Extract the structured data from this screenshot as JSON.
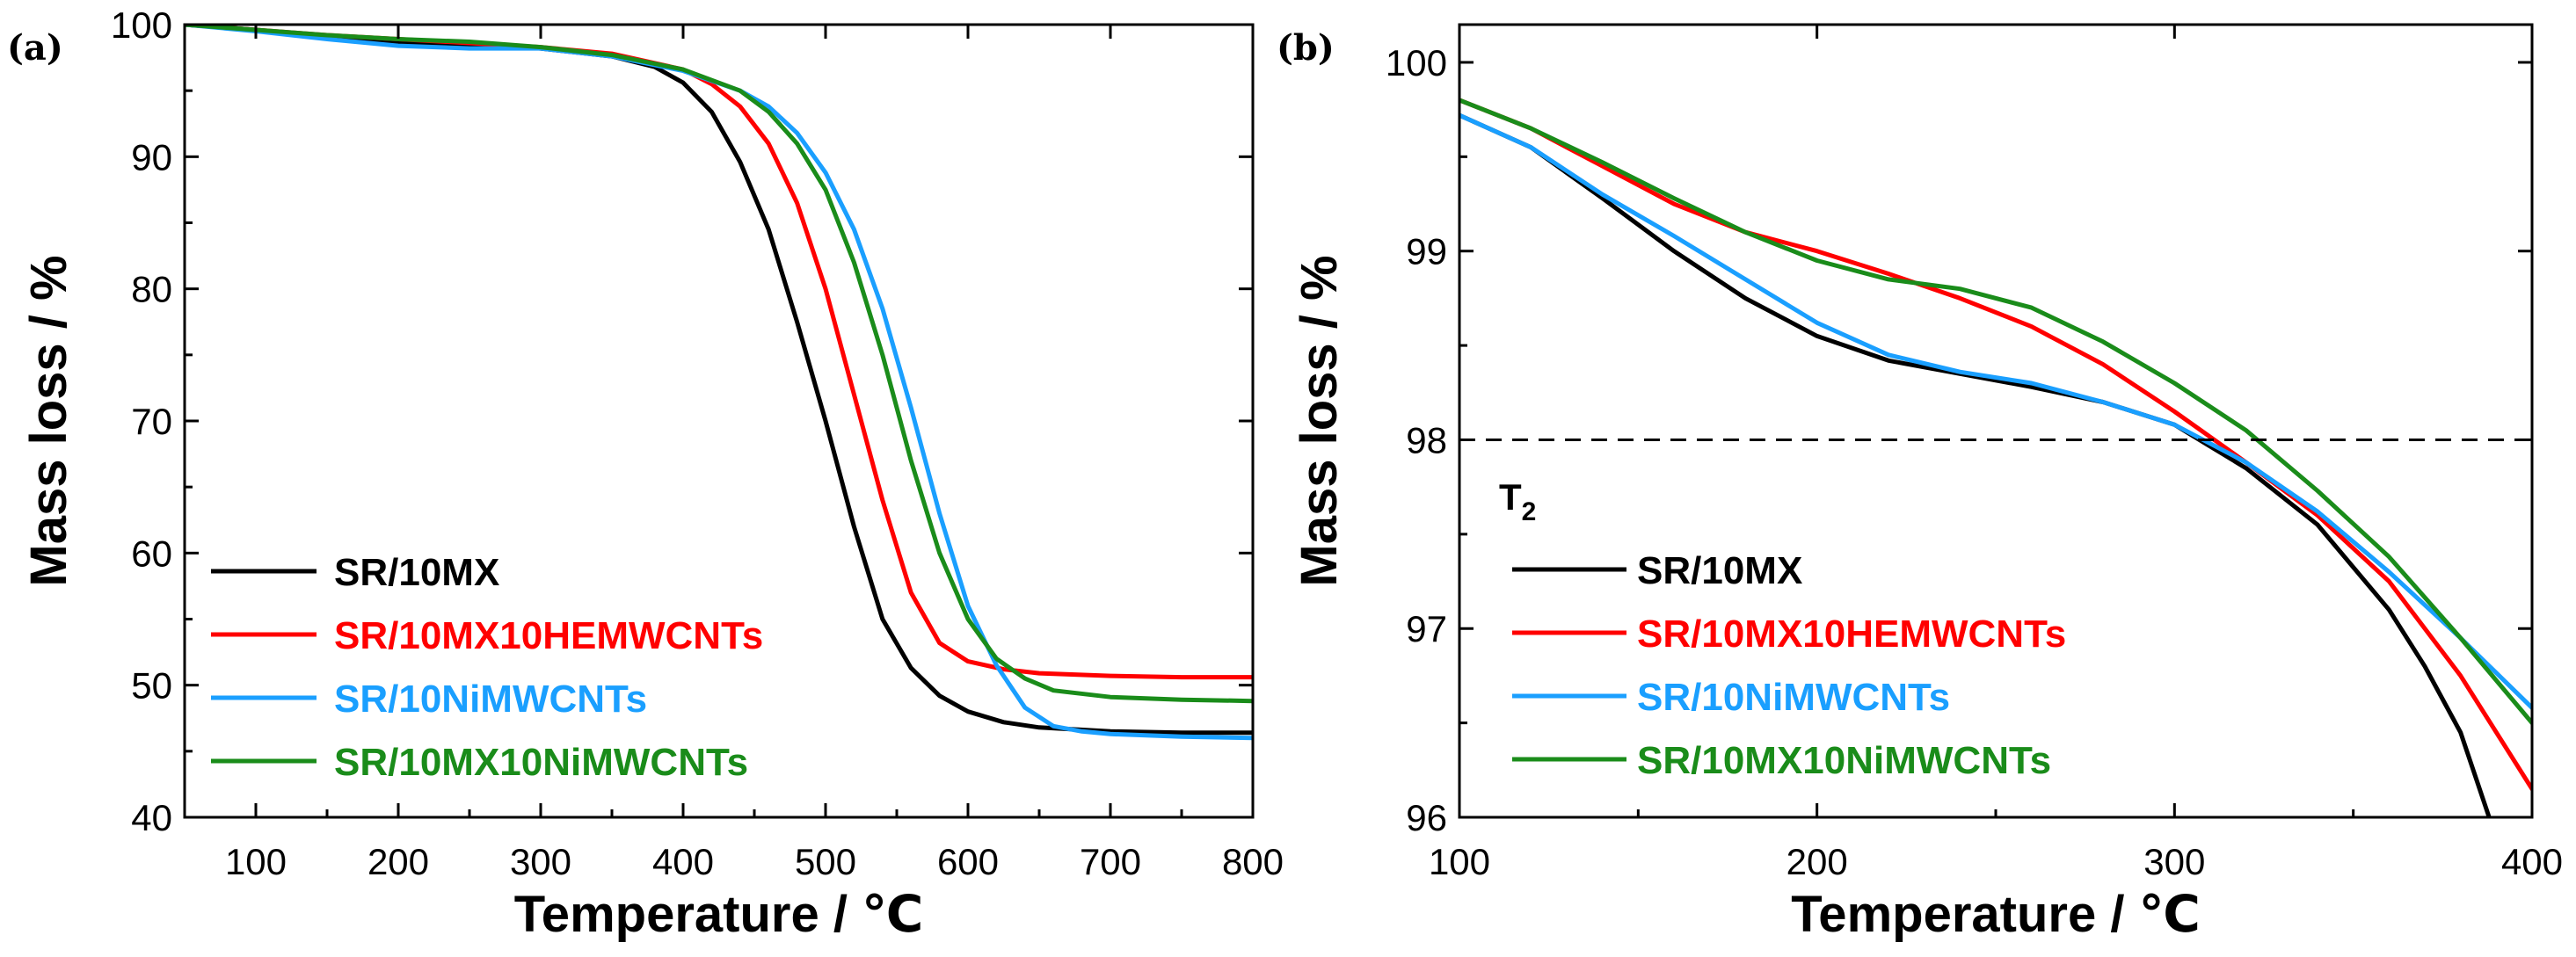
{
  "colors": {
    "SR/10MX": "#000000",
    "SR/10MX10HEMWCNTs": "#ff0000",
    "SR/10NiMWCNTs": "#1a9fff",
    "SR/10MX10NiMWCNTs": "#1a8c1a"
  },
  "chart_data": [
    {
      "type": "line",
      "panel_label": "(a)",
      "xlabel": "Temperature / ℃",
      "ylabel": "Mass loss / %",
      "xlim": [
        50,
        800
      ],
      "ylim": [
        40,
        100
      ],
      "xticks": [
        100,
        200,
        300,
        400,
        500,
        600,
        700,
        800
      ],
      "yticks": [
        40,
        50,
        60,
        70,
        80,
        90,
        100
      ],
      "legend_position": "lower-left",
      "series": [
        {
          "name": "SR/10MX",
          "x": [
            50,
            100,
            150,
            200,
            250,
            300,
            350,
            380,
            400,
            420,
            440,
            460,
            480,
            500,
            520,
            540,
            560,
            580,
            600,
            625,
            650,
            700,
            750,
            800
          ],
          "y": [
            100,
            99.6,
            99.1,
            98.7,
            98.5,
            98.2,
            97.6,
            96.8,
            95.6,
            93.4,
            89.6,
            84.5,
            77.5,
            70,
            62,
            55,
            51.3,
            49.2,
            48,
            47.2,
            46.8,
            46.5,
            46.4,
            46.4
          ]
        },
        {
          "name": "SR/10MX10HEMWCNTs",
          "x": [
            50,
            100,
            150,
            200,
            250,
            300,
            350,
            400,
            420,
            440,
            460,
            480,
            500,
            520,
            540,
            560,
            580,
            600,
            625,
            650,
            700,
            750,
            800
          ],
          "y": [
            100,
            99.6,
            99.2,
            98.9,
            98.6,
            98.3,
            97.8,
            96.6,
            95.5,
            93.8,
            91,
            86.5,
            80,
            72,
            64,
            57,
            53.2,
            51.8,
            51.2,
            50.9,
            50.7,
            50.6,
            50.6
          ]
        },
        {
          "name": "SR/10NiMWCNTs",
          "x": [
            50,
            100,
            150,
            200,
            250,
            300,
            350,
            400,
            440,
            460,
            480,
            500,
            520,
            540,
            560,
            580,
            600,
            620,
            640,
            660,
            680,
            700,
            750,
            800
          ],
          "y": [
            100,
            99.5,
            98.9,
            98.4,
            98.2,
            98.2,
            97.6,
            96.5,
            95,
            93.8,
            91.8,
            88.8,
            84.5,
            78.5,
            71,
            63,
            56,
            51.5,
            48.3,
            46.9,
            46.5,
            46.3,
            46.1,
            46
          ]
        },
        {
          "name": "SR/10MX10NiMWCNTs",
          "x": [
            50,
            100,
            150,
            200,
            250,
            300,
            350,
            400,
            440,
            460,
            480,
            500,
            520,
            540,
            560,
            580,
            600,
            620,
            640,
            660,
            700,
            750,
            800
          ],
          "y": [
            100,
            99.6,
            99.2,
            98.9,
            98.7,
            98.3,
            97.7,
            96.6,
            95,
            93.4,
            91,
            87.5,
            82,
            75,
            67,
            60,
            55,
            52,
            50.5,
            49.6,
            49.1,
            48.9,
            48.8
          ]
        }
      ]
    },
    {
      "type": "line",
      "panel_label": "(b)",
      "xlabel": "Temperature / ℃",
      "ylabel": "Mass loss / %",
      "xlim": [
        100,
        400
      ],
      "ylim": [
        96,
        100.2
      ],
      "xticks": [
        100,
        200,
        300,
        400
      ],
      "yticks": [
        96,
        97,
        98,
        99,
        100
      ],
      "legend_position": "lower-left",
      "reference_line_y": 98,
      "annotation": "T",
      "annotation_sub": "2",
      "series": [
        {
          "name": "SR/10MX",
          "x": [
            100,
            120,
            140,
            160,
            180,
            200,
            220,
            240,
            260,
            280,
            300,
            320,
            340,
            360,
            370,
            380,
            388
          ],
          "y": [
            99.72,
            99.55,
            99.28,
            99,
            98.75,
            98.55,
            98.42,
            98.35,
            98.28,
            98.2,
            98.08,
            97.85,
            97.55,
            97.1,
            96.8,
            96.45,
            96
          ]
        },
        {
          "name": "SR/10MX10HEMWCNTs",
          "x": [
            100,
            120,
            140,
            160,
            180,
            200,
            220,
            240,
            260,
            280,
            300,
            320,
            340,
            360,
            380,
            400
          ],
          "y": [
            99.8,
            99.65,
            99.45,
            99.25,
            99.1,
            99,
            98.88,
            98.75,
            98.6,
            98.4,
            98.15,
            97.88,
            97.6,
            97.25,
            96.75,
            96.15
          ]
        },
        {
          "name": "SR/10NiMWCNTs",
          "x": [
            100,
            120,
            140,
            160,
            180,
            200,
            220,
            240,
            260,
            280,
            300,
            320,
            340,
            360,
            380,
            400
          ],
          "y": [
            99.72,
            99.55,
            99.3,
            99.08,
            98.85,
            98.62,
            98.45,
            98.36,
            98.3,
            98.2,
            98.08,
            97.88,
            97.62,
            97.3,
            96.95,
            96.58
          ]
        },
        {
          "name": "SR/10MX10NiMWCNTs",
          "x": [
            100,
            120,
            140,
            160,
            180,
            200,
            220,
            240,
            260,
            280,
            300,
            320,
            340,
            360,
            380,
            400
          ],
          "y": [
            99.8,
            99.65,
            99.47,
            99.28,
            99.1,
            98.95,
            98.85,
            98.8,
            98.7,
            98.52,
            98.3,
            98.05,
            97.73,
            97.38,
            96.95,
            96.5
          ]
        }
      ]
    }
  ]
}
